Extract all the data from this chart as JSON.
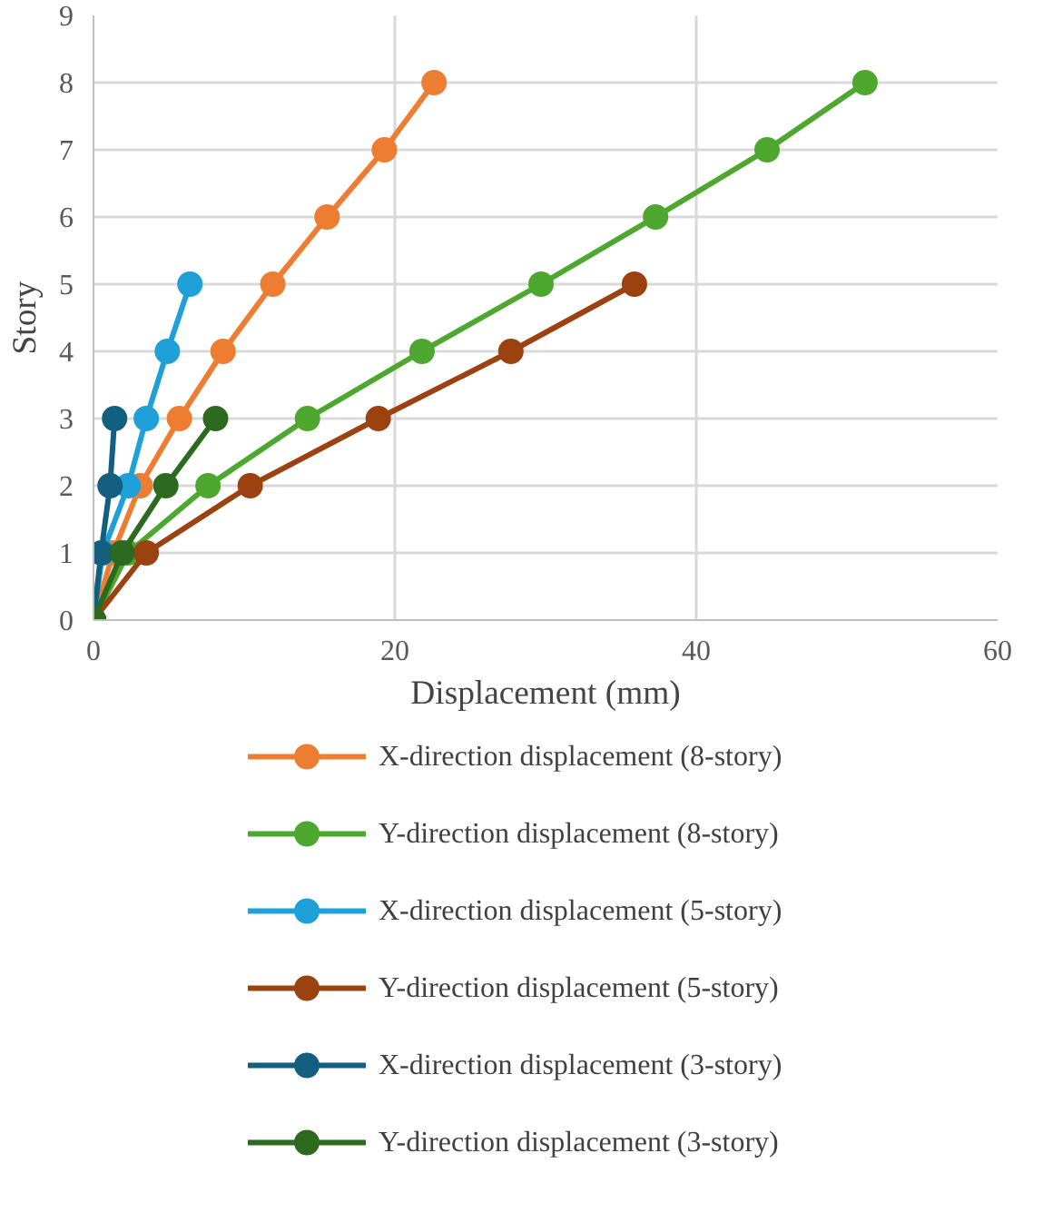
{
  "chart_data": {
    "type": "line",
    "xlabel": "Displacement (mm)",
    "ylabel": "Story",
    "marker": "circle",
    "grid": true,
    "legend": "bottom",
    "xlim": [
      0,
      60
    ],
    "xticks": [
      0,
      20,
      40,
      60
    ],
    "ylim": [
      0,
      9
    ],
    "yticks": [
      0,
      1,
      2,
      3,
      4,
      5,
      6,
      7,
      8,
      9
    ],
    "series": [
      {
        "name": "X-direction displacement (8-story)",
        "color": "#ed7d31",
        "x": [
          0,
          1.3,
          3.1,
          5.7,
          8.6,
          11.9,
          15.5,
          19.3,
          22.6
        ],
        "values": [
          0,
          1,
          2,
          3,
          4,
          5,
          6,
          7,
          8
        ]
      },
      {
        "name": "Y-direction displacement (8-story)",
        "color": "#4ea72e",
        "x": [
          0,
          2.3,
          7.6,
          14.2,
          21.8,
          29.7,
          37.3,
          44.7,
          51.2
        ],
        "values": [
          0,
          1,
          2,
          3,
          4,
          5,
          6,
          7,
          8
        ]
      },
      {
        "name": "X-direction displacement (5-story)",
        "color": "#1fa0d8",
        "x": [
          0,
          0.6,
          2.3,
          3.5,
          4.9,
          6.4
        ],
        "values": [
          0,
          1,
          2,
          3,
          4,
          5
        ]
      },
      {
        "name": "Y-direction displacement (5-story)",
        "color": "#9c4211",
        "x": [
          0,
          3.5,
          10.4,
          18.9,
          27.7,
          35.9
        ],
        "values": [
          0,
          1,
          2,
          3,
          4,
          5
        ]
      },
      {
        "name": "X-direction displacement (3-story)",
        "color": "#135f80",
        "x": [
          0,
          0.5,
          1.1,
          1.4
        ],
        "values": [
          0,
          1,
          2,
          3
        ]
      },
      {
        "name": "Y-direction displacement (3-story)",
        "color": "#2d6a1f",
        "x": [
          0,
          1.9,
          4.8,
          8.1
        ],
        "values": [
          0,
          1,
          2,
          3
        ]
      }
    ]
  }
}
